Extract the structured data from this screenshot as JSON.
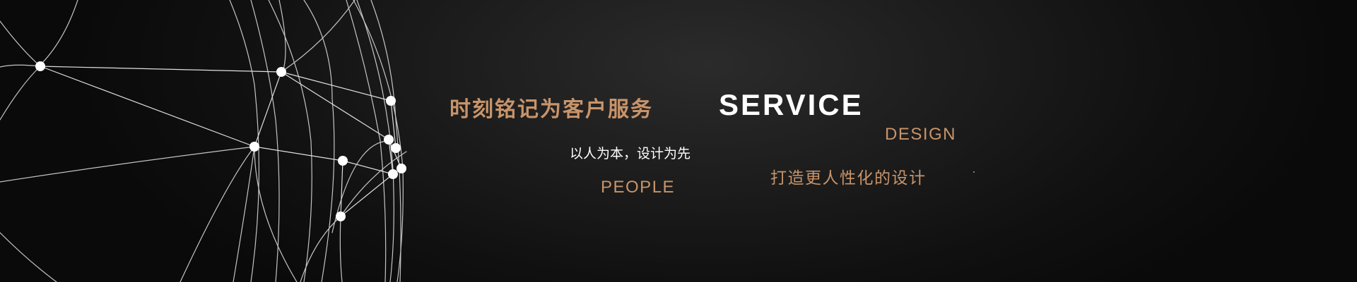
{
  "banner": {
    "slogan": "时刻铭记为客户服务",
    "service": "SERVICE",
    "design": "DESIGN",
    "people_first": "以人为本，设计为先",
    "design_line": "打造更人性化的设计",
    "people": "PEOPLE"
  },
  "colors": {
    "accent": "#c8946a",
    "text_light": "#ffffff",
    "background": "#141414"
  },
  "decor": {
    "globe": "wireframe-globe-illustration"
  }
}
